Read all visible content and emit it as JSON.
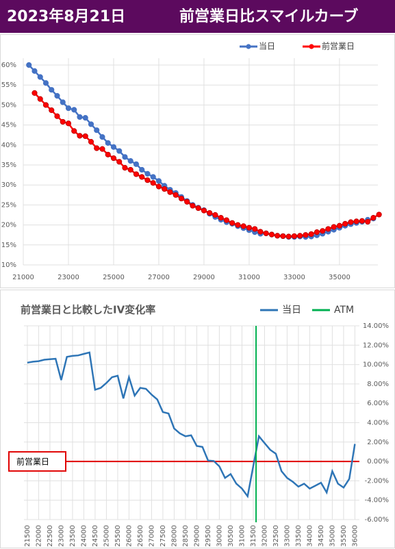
{
  "header": {
    "date": "2023年8月21日",
    "title": "前営業日比スマイルカーブ"
  },
  "chart_data": [
    {
      "type": "line",
      "markers": true,
      "grid": true,
      "x": [
        21250,
        21500,
        21750,
        22000,
        22250,
        22500,
        22750,
        23000,
        23250,
        23500,
        23750,
        24000,
        24250,
        24500,
        24750,
        25000,
        25250,
        25500,
        25750,
        26000,
        26250,
        26500,
        26750,
        27000,
        27250,
        27500,
        27750,
        28000,
        28250,
        28500,
        28750,
        29000,
        29250,
        29500,
        29750,
        30000,
        30250,
        30500,
        30750,
        31000,
        31250,
        31500,
        31750,
        32000,
        32250,
        32500,
        32750,
        33000,
        33250,
        33500,
        33750,
        34000,
        34250,
        34500,
        34750,
        35000,
        35250,
        35500,
        35750,
        36000,
        36250,
        36500,
        36750
      ],
      "series": [
        {
          "name": "当日",
          "color": "#4472c4",
          "values": [
            60,
            58.5,
            57,
            55.5,
            53.8,
            52.3,
            50.7,
            49.2,
            48.8,
            47,
            46.8,
            45.2,
            43.7,
            42,
            40.5,
            39.5,
            38.5,
            37,
            36,
            35.2,
            33.8,
            32.8,
            32,
            31,
            29.8,
            28.8,
            28,
            27,
            26,
            25,
            24.3,
            23.7,
            22.8,
            22,
            21.3,
            20.7,
            20.3,
            19.7,
            19.2,
            18.7,
            18.2,
            17.8,
            17.9,
            17.6,
            17.3,
            17.2,
            17,
            17,
            17.1,
            17,
            17.1,
            17.4,
            17.8,
            18.3,
            18.8,
            19.3,
            19.8,
            20.2,
            20.5,
            20.8,
            21.3,
            21.6,
            null
          ]
        },
        {
          "name": "前営業日",
          "color": "#ff0000",
          "values": [
            null,
            53,
            51.5,
            50,
            48.7,
            47.2,
            45.8,
            45.4,
            43.5,
            42.3,
            42.2,
            40.8,
            39.2,
            39,
            37.6,
            36.7,
            35.8,
            34.3,
            33.8,
            32.7,
            32,
            31.2,
            30.5,
            29.6,
            29,
            28.2,
            27.5,
            26.6,
            25.8,
            24.8,
            24.2,
            23.6,
            23,
            22.5,
            21.8,
            21.2,
            20.5,
            20,
            19.7,
            19.3,
            19,
            18.3,
            17.9,
            17.6,
            17.3,
            17.2,
            17.1,
            17.2,
            17.3,
            17.5,
            17.7,
            18.2,
            18.5,
            19,
            19.5,
            19.8,
            20.3,
            20.7,
            20.9,
            21,
            20.8,
            21.8,
            22.6
          ]
        }
      ],
      "xlim": [
        21000,
        36700
      ],
      "xticks": [
        21000,
        23000,
        25000,
        27000,
        29000,
        31000,
        33000,
        35000
      ],
      "ylim": [
        10,
        60
      ],
      "yticks": [
        {
          "value": 10,
          "label": "10%"
        },
        {
          "value": 15,
          "label": "15%"
        },
        {
          "value": 20,
          "label": "20%"
        },
        {
          "value": 25,
          "label": "25%"
        },
        {
          "value": 30,
          "label": "30%"
        },
        {
          "value": 35,
          "label": "35%"
        },
        {
          "value": 40,
          "label": "40%"
        },
        {
          "value": 45,
          "label": "45%"
        },
        {
          "value": 50,
          "label": "50%"
        },
        {
          "value": 55,
          "label": "55%"
        },
        {
          "value": 60,
          "label": "60%"
        }
      ]
    },
    {
      "type": "line",
      "markers": false,
      "grid": true,
      "title": "前営業日と比較したIV変化率",
      "x": [
        21500,
        21750,
        22000,
        22250,
        22500,
        22750,
        23000,
        23250,
        23500,
        23750,
        24000,
        24250,
        24500,
        24750,
        25000,
        25250,
        25500,
        25750,
        26000,
        26250,
        26500,
        26750,
        27000,
        27250,
        27500,
        27750,
        28000,
        28250,
        28500,
        28750,
        29000,
        29250,
        29500,
        29750,
        30000,
        30250,
        30500,
        30750,
        31000,
        31250,
        31500,
        31750,
        32000,
        32250,
        32500,
        32750,
        33000,
        33250,
        33500,
        33750,
        34000,
        34250,
        34500,
        34750,
        35000,
        35250,
        35500,
        35750,
        36000
      ],
      "series": [
        {
          "name": "当日",
          "color": "#2e75b6",
          "axis": "y2",
          "values": [
            10.2,
            10.3,
            10.35,
            10.5,
            10.55,
            10.6,
            8.4,
            10.8,
            10.9,
            10.95,
            11.1,
            11.25,
            7.4,
            7.6,
            8.1,
            8.7,
            8.85,
            6.5,
            8.7,
            6.8,
            7.6,
            7.5,
            6.9,
            6.4,
            5.1,
            4.95,
            3.4,
            2.9,
            2.6,
            2.7,
            1.6,
            1.5,
            0.1,
            0.05,
            -0.5,
            -1.7,
            -1.3,
            -2.3,
            -2.8,
            -3.6,
            -0.5,
            2.6,
            1.9,
            1.2,
            0.8,
            -1.0,
            -1.7,
            -2.1,
            -2.6,
            -2.3,
            -2.8,
            -2.5,
            -2.2,
            -3.2,
            -1.0,
            -2.3,
            -2.7,
            -1.8,
            1.8
          ]
        }
      ],
      "vlines": [
        {
          "name": "ATM",
          "x": 31625,
          "color": "#00b050"
        }
      ],
      "hlines": [
        {
          "label": "前営業日",
          "y": 0,
          "color": "#e00000"
        }
      ],
      "xlim": [
        21350,
        36200
      ],
      "xticks": [
        21500,
        22000,
        22500,
        23000,
        23500,
        24000,
        24500,
        25000,
        25500,
        26000,
        26500,
        27000,
        27500,
        28000,
        28500,
        29000,
        29500,
        30000,
        30500,
        31000,
        31500,
        32000,
        32500,
        33000,
        33500,
        34000,
        34500,
        35000,
        35500,
        36000
      ],
      "y2lim": [
        -6,
        14
      ],
      "y2ticks": [
        {
          "value": -6,
          "label": "-6.00%"
        },
        {
          "value": -4,
          "label": "-4.00%"
        },
        {
          "value": -2,
          "label": "-2.00%"
        },
        {
          "value": 0,
          "label": "0.00%"
        },
        {
          "value": 2,
          "label": "2.00%"
        },
        {
          "value": 4,
          "label": "4.00%"
        },
        {
          "value": 6,
          "label": "6.00%"
        },
        {
          "value": 8,
          "label": "8.00%"
        },
        {
          "value": 10,
          "label": "10.00%"
        },
        {
          "value": 12,
          "label": "12.00%"
        },
        {
          "value": 14,
          "label": "14.00%"
        }
      ]
    }
  ]
}
